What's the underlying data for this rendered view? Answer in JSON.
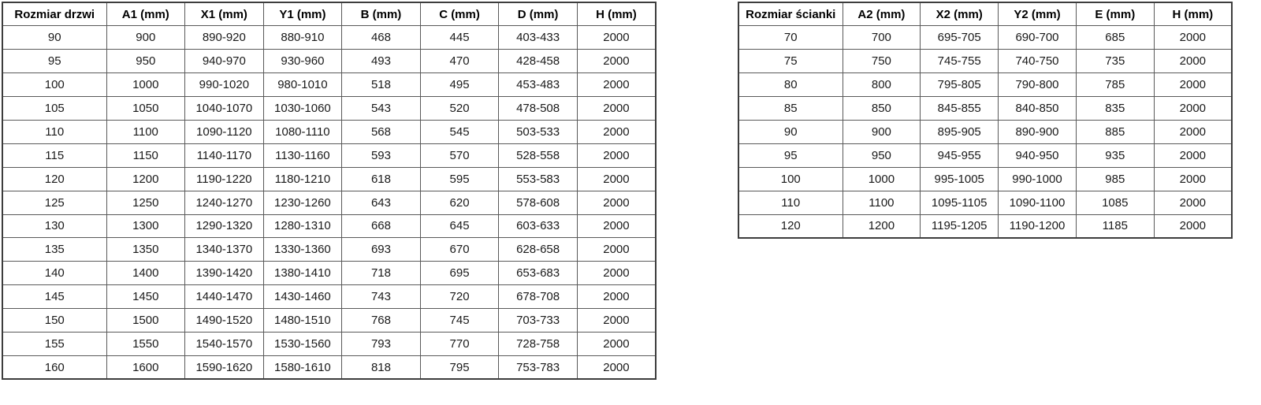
{
  "style": {
    "background_color": "#ffffff",
    "outer_border_color": "#3d3d3d",
    "inner_border_color": "#595959",
    "text_color": "#1a1a1a"
  },
  "door_table": {
    "title": "door dimensions table",
    "headers": [
      "Rozmiar drzwi",
      "A1 (mm)",
      "X1 (mm)",
      "Y1 (mm)",
      "B (mm)",
      "C (mm)",
      "D (mm)",
      "H (mm)"
    ],
    "rows": [
      [
        "90",
        "900",
        "890-920",
        "880-910",
        "468",
        "445",
        "403-433",
        "2000"
      ],
      [
        "95",
        "950",
        "940-970",
        "930-960",
        "493",
        "470",
        "428-458",
        "2000"
      ],
      [
        "100",
        "1000",
        "990-1020",
        "980-1010",
        "518",
        "495",
        "453-483",
        "2000"
      ],
      [
        "105",
        "1050",
        "1040-1070",
        "1030-1060",
        "543",
        "520",
        "478-508",
        "2000"
      ],
      [
        "110",
        "1100",
        "1090-1120",
        "1080-1110",
        "568",
        "545",
        "503-533",
        "2000"
      ],
      [
        "115",
        "1150",
        "1140-1170",
        "1130-1160",
        "593",
        "570",
        "528-558",
        "2000"
      ],
      [
        "120",
        "1200",
        "1190-1220",
        "1180-1210",
        "618",
        "595",
        "553-583",
        "2000"
      ],
      [
        "125",
        "1250",
        "1240-1270",
        "1230-1260",
        "643",
        "620",
        "578-608",
        "2000"
      ],
      [
        "130",
        "1300",
        "1290-1320",
        "1280-1310",
        "668",
        "645",
        "603-633",
        "2000"
      ],
      [
        "135",
        "1350",
        "1340-1370",
        "1330-1360",
        "693",
        "670",
        "628-658",
        "2000"
      ],
      [
        "140",
        "1400",
        "1390-1420",
        "1380-1410",
        "718",
        "695",
        "653-683",
        "2000"
      ],
      [
        "145",
        "1450",
        "1440-1470",
        "1430-1460",
        "743",
        "720",
        "678-708",
        "2000"
      ],
      [
        "150",
        "1500",
        "1490-1520",
        "1480-1510",
        "768",
        "745",
        "703-733",
        "2000"
      ],
      [
        "155",
        "1550",
        "1540-1570",
        "1530-1560",
        "793",
        "770",
        "728-758",
        "2000"
      ],
      [
        "160",
        "1600",
        "1590-1620",
        "1580-1610",
        "818",
        "795",
        "753-783",
        "2000"
      ]
    ]
  },
  "wall_table": {
    "title": "wall panel dimensions table",
    "headers": [
      "Rozmiar ścianki",
      "A2 (mm)",
      "X2 (mm)",
      "Y2 (mm)",
      "E (mm)",
      "H (mm)"
    ],
    "rows": [
      [
        "70",
        "700",
        "695-705",
        "690-700",
        "685",
        "2000"
      ],
      [
        "75",
        "750",
        "745-755",
        "740-750",
        "735",
        "2000"
      ],
      [
        "80",
        "800",
        "795-805",
        "790-800",
        "785",
        "2000"
      ],
      [
        "85",
        "850",
        "845-855",
        "840-850",
        "835",
        "2000"
      ],
      [
        "90",
        "900",
        "895-905",
        "890-900",
        "885",
        "2000"
      ],
      [
        "95",
        "950",
        "945-955",
        "940-950",
        "935",
        "2000"
      ],
      [
        "100",
        "1000",
        "995-1005",
        "990-1000",
        "985",
        "2000"
      ],
      [
        "110",
        "1100",
        "1095-1105",
        "1090-1100",
        "1085",
        "2000"
      ],
      [
        "120",
        "1200",
        "1195-1205",
        "1190-1200",
        "1185",
        "2000"
      ]
    ]
  }
}
